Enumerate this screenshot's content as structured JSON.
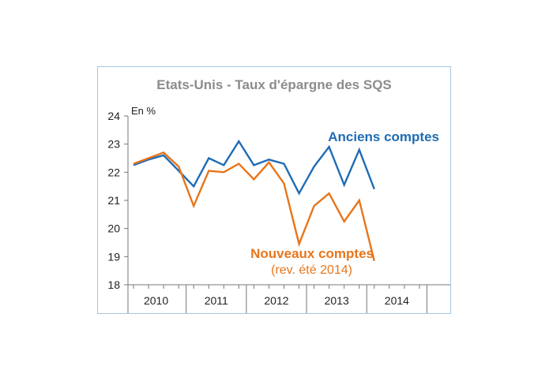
{
  "chart_data": {
    "type": "line",
    "title": "Etats-Unis - Taux d'épargne des SQS",
    "ylabel": "En %",
    "xlabel": "",
    "ylim": [
      18,
      24
    ],
    "yticks": [
      18,
      19,
      20,
      21,
      22,
      23,
      24
    ],
    "grid": false,
    "x_groups": [
      "2010",
      "2011",
      "2012",
      "2013",
      "2014"
    ],
    "x": [
      "2010-Q1",
      "2010-Q2",
      "2010-Q3",
      "2010-Q4",
      "2011-Q1",
      "2011-Q2",
      "2011-Q3",
      "2011-Q4",
      "2012-Q1",
      "2012-Q2",
      "2012-Q3",
      "2012-Q4",
      "2013-Q1",
      "2013-Q2",
      "2013-Q3",
      "2013-Q4",
      "2014-Q1"
    ],
    "series": [
      {
        "name": "Anciens comptes",
        "color": "#1f6cb5",
        "values": [
          22.25,
          22.45,
          22.6,
          22.05,
          21.5,
          22.5,
          22.25,
          23.1,
          22.25,
          22.45,
          22.3,
          21.25,
          22.2,
          22.9,
          21.55,
          22.8,
          21.4
        ]
      },
      {
        "name": "Nouveaux comptes",
        "note": "(rev. été 2014)",
        "color": "#e8751a",
        "values": [
          22.3,
          22.5,
          22.7,
          22.2,
          20.8,
          22.05,
          22.0,
          22.3,
          21.75,
          22.35,
          21.6,
          19.45,
          20.8,
          21.25,
          20.25,
          21.0,
          18.85
        ]
      }
    ]
  }
}
